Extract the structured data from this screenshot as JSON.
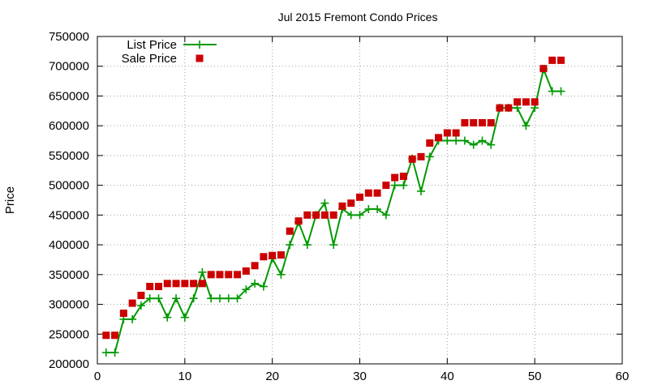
{
  "chart_data": {
    "type": "line+scatter",
    "title": "Jul 2015 Fremont Condo Prices",
    "xlabel": "",
    "ylabel": "Price",
    "xlim": [
      0,
      60
    ],
    "ylim": [
      200000,
      750000
    ],
    "xticks": [
      "0",
      "10",
      "20",
      "30",
      "40",
      "50",
      "60"
    ],
    "yticks": [
      "200000",
      "250000",
      "300000",
      "350000",
      "400000",
      "450000",
      "500000",
      "550000",
      "600000",
      "650000",
      "700000",
      "750000"
    ],
    "grid": true,
    "legend_position": "top-left",
    "series": [
      {
        "name": "List Price",
        "style": "lines+points",
        "marker": "plus",
        "color": "#009900",
        "x": [
          1,
          2,
          3,
          4,
          5,
          6,
          7,
          8,
          9,
          10,
          11,
          12,
          13,
          14,
          15,
          16,
          17,
          18,
          19,
          20,
          21,
          22,
          23,
          24,
          25,
          26,
          27,
          28,
          29,
          30,
          31,
          32,
          33,
          34,
          35,
          36,
          37,
          38,
          39,
          40,
          41,
          42,
          43,
          44,
          45,
          46,
          47,
          48,
          49,
          50,
          51,
          52,
          53
        ],
        "y": [
          219000,
          219000,
          275000,
          275000,
          298000,
          310000,
          310000,
          278000,
          310000,
          278000,
          310000,
          354000,
          310000,
          310000,
          310000,
          310000,
          325000,
          335000,
          330000,
          377000,
          350000,
          400000,
          438000,
          400000,
          450000,
          470000,
          400000,
          460000,
          450000,
          450000,
          460000,
          460000,
          450000,
          500000,
          500000,
          545000,
          490000,
          548000,
          575000,
          575000,
          575000,
          575000,
          568000,
          575000,
          568000,
          630000,
          630000,
          630000,
          600000,
          630000,
          695000,
          658000,
          658000
        ]
      },
      {
        "name": "Sale Price",
        "style": "points",
        "marker": "square",
        "color": "#cc0000",
        "x": [
          1,
          2,
          3,
          4,
          5,
          6,
          7,
          8,
          9,
          10,
          11,
          12,
          13,
          14,
          15,
          16,
          17,
          18,
          19,
          20,
          21,
          22,
          23,
          24,
          25,
          26,
          27,
          28,
          29,
          30,
          31,
          32,
          33,
          34,
          35,
          36,
          37,
          38,
          39,
          40,
          41,
          42,
          43,
          44,
          45,
          46,
          47,
          48,
          49,
          50,
          51,
          52,
          53
        ],
        "y": [
          248000,
          248000,
          285000,
          302000,
          315000,
          330000,
          330000,
          335000,
          335000,
          335000,
          335000,
          335000,
          350000,
          350000,
          350000,
          350000,
          356000,
          365000,
          380000,
          382000,
          383000,
          423000,
          440000,
          450000,
          450000,
          450000,
          450000,
          465000,
          470000,
          480000,
          487000,
          487000,
          500000,
          513000,
          515000,
          544000,
          548000,
          571000,
          580000,
          588000,
          588000,
          605000,
          605000,
          605000,
          605000,
          630000,
          630000,
          640000,
          640000,
          640000,
          696000,
          710000,
          710000
        ]
      }
    ]
  }
}
